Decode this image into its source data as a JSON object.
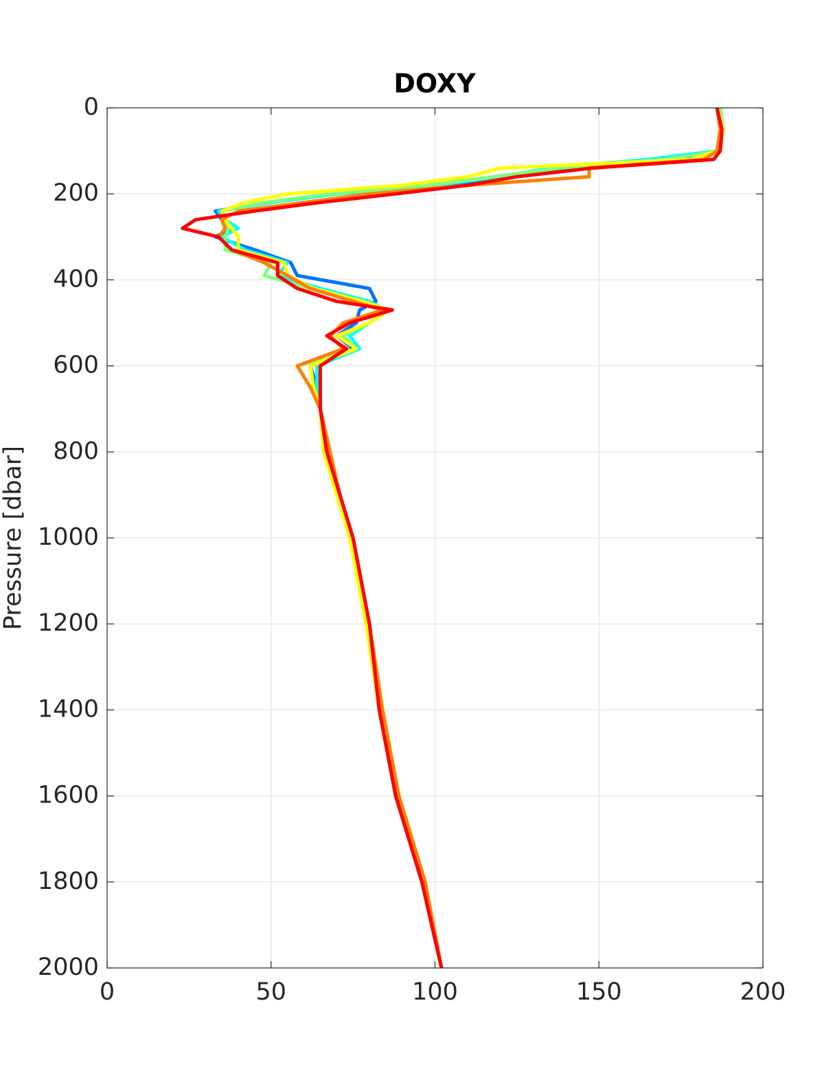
{
  "chart_data": {
    "type": "line",
    "title": "DOXY",
    "y_label": "Pressure [dbar]",
    "xlim": [
      0,
      200
    ],
    "xticks": [
      0,
      50,
      100,
      150,
      200
    ],
    "ylim": [
      0,
      2000
    ],
    "yticks": [
      0,
      200,
      400,
      600,
      800,
      1000,
      1200,
      1400,
      1600,
      1800,
      2000
    ],
    "y_reversed": true,
    "grid": true,
    "series": [
      {
        "color": "#0072ff",
        "x": [
          186,
          188,
          186,
          175,
          140,
          125,
          100,
          70,
          50,
          33,
          35,
          38,
          33,
          45,
          56,
          58,
          80,
          82,
          77,
          76,
          70,
          75,
          62,
          64,
          65,
          67,
          71,
          75,
          80,
          83,
          88,
          96,
          102
        ],
        "y": [
          0,
          50,
          100,
          120,
          140,
          160,
          180,
          200,
          220,
          240,
          260,
          280,
          300,
          330,
          360,
          390,
          420,
          450,
          470,
          500,
          530,
          560,
          600,
          650,
          700,
          800,
          900,
          1000,
          1200,
          1400,
          1600,
          1800,
          2000
        ]
      },
      {
        "color": "#00ffff",
        "x": [
          186,
          188,
          186,
          165,
          135,
          120,
          100,
          70,
          50,
          34,
          36,
          40,
          35,
          42,
          55,
          52,
          65,
          80,
          85,
          80,
          74,
          77,
          64,
          64,
          65,
          66,
          71,
          74,
          80,
          83,
          88,
          96,
          102
        ],
        "y": [
          0,
          50,
          100,
          120,
          140,
          160,
          180,
          200,
          220,
          240,
          260,
          280,
          300,
          330,
          360,
          390,
          420,
          450,
          470,
          500,
          530,
          560,
          600,
          650,
          700,
          800,
          900,
          1000,
          1200,
          1400,
          1600,
          1800,
          2000
        ]
      },
      {
        "color": "#80ff80",
        "x": [
          187,
          188,
          187,
          170,
          138,
          118,
          98,
          68,
          48,
          35,
          36,
          37,
          36,
          36,
          50,
          48,
          62,
          78,
          84,
          80,
          72,
          76,
          58,
          62,
          65,
          66,
          71,
          75,
          80,
          83,
          88,
          96,
          102
        ],
        "y": [
          0,
          50,
          100,
          120,
          140,
          160,
          180,
          200,
          220,
          240,
          260,
          280,
          300,
          330,
          360,
          390,
          420,
          450,
          470,
          500,
          530,
          560,
          600,
          650,
          700,
          800,
          900,
          1000,
          1200,
          1400,
          1600,
          1800,
          2000
        ]
      },
      {
        "color": "#ffff00",
        "x": [
          186,
          188,
          186,
          178,
          120,
          110,
          90,
          55,
          42,
          35,
          36,
          38,
          40,
          40,
          54,
          55,
          63,
          78,
          86,
          80,
          70,
          76,
          62,
          63,
          65,
          66,
          70,
          74,
          79,
          83,
          88,
          96,
          102
        ],
        "y": [
          0,
          50,
          100,
          120,
          140,
          160,
          180,
          200,
          220,
          240,
          260,
          280,
          300,
          330,
          360,
          390,
          420,
          450,
          470,
          500,
          530,
          560,
          600,
          650,
          700,
          800,
          900,
          1000,
          1200,
          1400,
          1600,
          1800,
          2000
        ]
      },
      {
        "color": "#ff8000",
        "x": [
          186,
          187,
          186,
          182,
          147,
          147,
          110,
          80,
          60,
          40,
          35,
          36,
          34,
          38,
          48,
          55,
          62,
          75,
          84,
          72,
          68,
          72,
          58,
          62,
          65,
          68,
          71,
          75,
          80,
          84,
          89,
          97,
          102
        ],
        "y": [
          0,
          50,
          100,
          120,
          140,
          160,
          180,
          200,
          220,
          240,
          260,
          280,
          300,
          330,
          360,
          390,
          420,
          450,
          470,
          500,
          530,
          560,
          600,
          650,
          700,
          800,
          900,
          1000,
          1200,
          1400,
          1600,
          1800,
          2000
        ]
      },
      {
        "color": "#ff0000",
        "x": [
          186,
          187.5,
          187,
          185,
          148,
          125,
          110,
          88,
          65,
          45,
          27,
          23,
          34,
          38,
          52,
          52,
          58,
          70,
          87,
          74,
          67,
          73,
          65,
          65,
          65,
          67,
          71,
          75,
          80,
          83,
          88,
          96,
          102
        ],
        "y": [
          0,
          50,
          100,
          120,
          140,
          160,
          180,
          200,
          220,
          240,
          260,
          280,
          300,
          330,
          360,
          390,
          420,
          450,
          470,
          500,
          530,
          560,
          600,
          650,
          700,
          800,
          900,
          1000,
          1200,
          1400,
          1600,
          1800,
          2000
        ]
      }
    ]
  }
}
